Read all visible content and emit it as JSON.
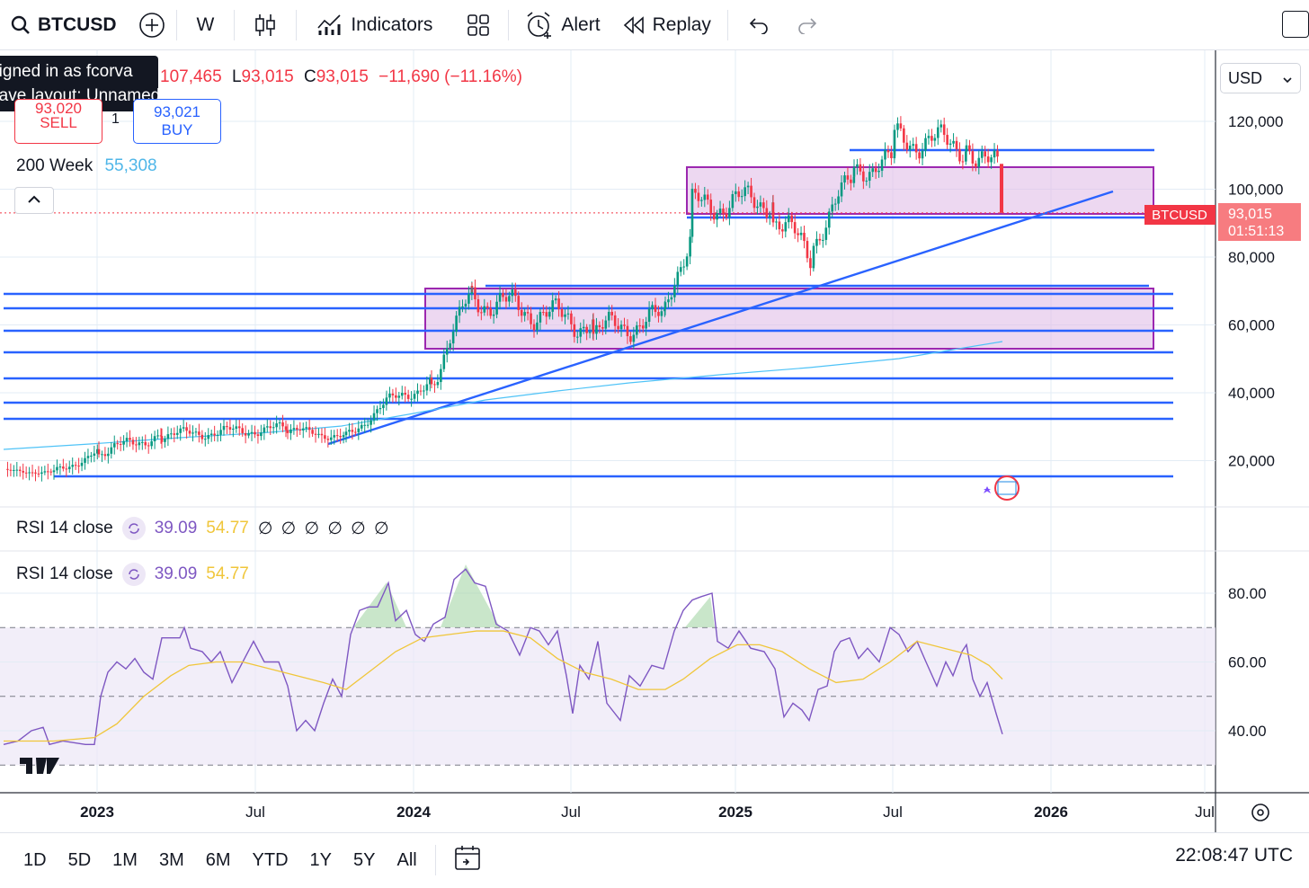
{
  "toolbar": {
    "symbol": "BTCUSD",
    "interval": "W",
    "indicators_label": "Indicators",
    "alert_label": "Alert",
    "replay_label": "Replay"
  },
  "tooltip": {
    "line1": "Signed in as fcorva",
    "line2": "Save layout: Unnamed"
  },
  "ohlc": {
    "h_value": "107,465",
    "l_label": "L",
    "l_value": "93,015",
    "c_label": "C",
    "c_value": "93,015",
    "change": "−11,690 (−11.16%)"
  },
  "trade": {
    "sell_price": "93,020",
    "sell_label": "SELL",
    "qty": "1",
    "buy_price": "93,021",
    "buy_label": "BUY"
  },
  "ma": {
    "label": "200 Week",
    "value": "55,308"
  },
  "currency": "USD",
  "price_axis": {
    "labels": [
      "120,000",
      "100,000",
      "80,000",
      "60,000",
      "40,000",
      "20,000"
    ],
    "current_symbol": "BTCUSD",
    "current_price": "93,015",
    "countdown": "01:51:13"
  },
  "rsi_legends": [
    {
      "label": "RSI 14 close",
      "value1": "39.09",
      "value2": "54.77",
      "extra": "∅ ∅ ∅ ∅ ∅ ∅"
    },
    {
      "label": "RSI 14 close",
      "value1": "39.09",
      "value2": "54.77",
      "extra": ""
    }
  ],
  "rsi_axis": {
    "labels": [
      "80.00",
      "60.00",
      "40.00"
    ]
  },
  "time_axis": {
    "labels": [
      "2023",
      "Jul",
      "2024",
      "Jul",
      "2025",
      "Jul",
      "2026",
      "Jul"
    ]
  },
  "ranges": [
    "1D",
    "5D",
    "1M",
    "3M",
    "6M",
    "YTD",
    "1Y",
    "5Y",
    "All"
  ],
  "clock": "22:08:47 UTC",
  "colors": {
    "up": "#089981",
    "down": "#f23645",
    "hline": "#2962ff",
    "box_border": "#9c27b0",
    "box_fill": "#e1bee7",
    "ma_line": "#4fc3f7",
    "rsi_line": "#7e57c2",
    "rsi_ma": "#f0c63a"
  }
}
